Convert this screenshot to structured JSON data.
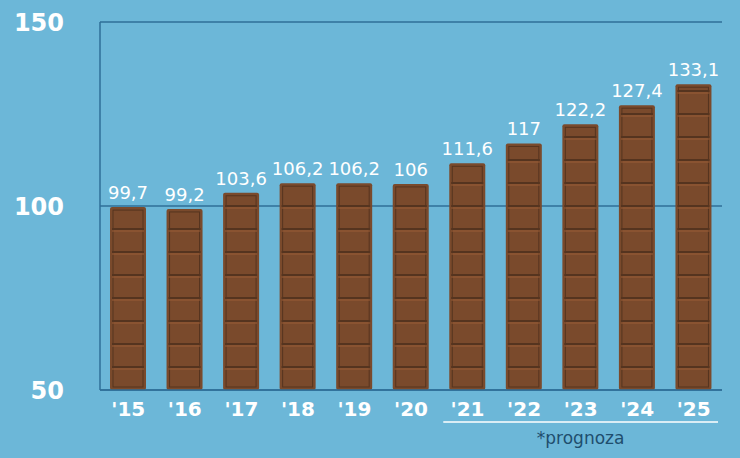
{
  "chart_data": {
    "type": "bar",
    "categories": [
      "'15",
      "'16",
      "'17",
      "'18",
      "'19",
      "'20",
      "'21",
      "'22",
      "'23",
      "'24",
      "'25"
    ],
    "values": [
      99.7,
      99.2,
      103.6,
      106.2,
      106.2,
      106,
      111.6,
      117,
      122.2,
      127.4,
      133.1
    ],
    "value_labels": [
      "99,7",
      "99,2",
      "103,6",
      "106,2",
      "106,2",
      "106",
      "111,6",
      "117",
      "122,2",
      "127,4",
      "133,1"
    ],
    "color": "#7a4a2c",
    "ylim": [
      50,
      150
    ],
    "yticks": [
      50,
      100,
      150
    ],
    "grid": true,
    "data_labels": true,
    "annotation": {
      "text": "*prognoza",
      "categories": [
        "'21",
        "'25"
      ]
    }
  }
}
